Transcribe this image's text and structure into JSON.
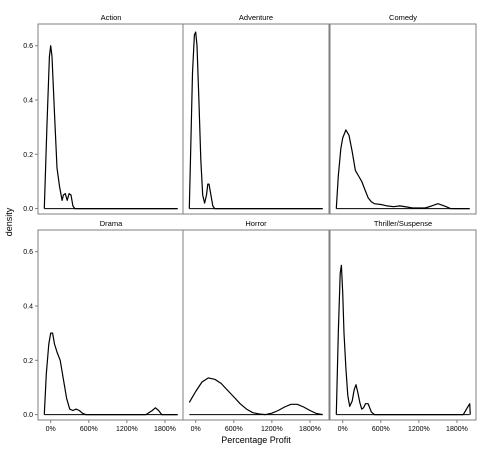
{
  "chart_data": {
    "type": "area",
    "facet_layout": "2 rows x 3 columns, shared axes",
    "xlabel": "Percentage Profit",
    "ylabel": "density",
    "xlim": [
      -200,
      2100
    ],
    "ylim": [
      -0.02,
      0.68
    ],
    "x_ticks": [
      0,
      600,
      1200,
      1800
    ],
    "x_tick_labels": [
      "0%",
      "600%",
      "1200%",
      "1800%"
    ],
    "y_ticks": [
      0.0,
      0.2,
      0.4,
      0.6
    ],
    "y_tick_labels": [
      "0.0",
      "0.2",
      "0.4",
      "0.6"
    ],
    "grid": false,
    "colors": {
      "line": "#000000",
      "panel_border": "#7f7f7f",
      "background": "#ffffff"
    },
    "facets": [
      {
        "name": "Action",
        "x": [
          -100,
          -60,
          -20,
          0,
          20,
          60,
          100,
          140,
          180,
          200,
          230,
          260,
          290,
          320,
          350,
          380,
          420,
          2000
        ],
        "value": [
          0.0,
          0.3,
          0.56,
          0.6,
          0.56,
          0.35,
          0.15,
          0.08,
          0.03,
          0.05,
          0.055,
          0.03,
          0.055,
          0.05,
          0.01,
          0.0,
          0.0,
          0.0
        ]
      },
      {
        "name": "Adventure",
        "x": [
          -100,
          -80,
          -50,
          -20,
          0,
          20,
          50,
          80,
          110,
          140,
          170,
          190,
          210,
          240,
          270,
          300,
          330,
          2000
        ],
        "value": [
          0.0,
          0.2,
          0.5,
          0.64,
          0.65,
          0.6,
          0.4,
          0.18,
          0.05,
          0.02,
          0.05,
          0.09,
          0.09,
          0.05,
          0.01,
          0.0,
          0.0,
          0.0
        ]
      },
      {
        "name": "Comedy",
        "x": [
          -100,
          -70,
          -30,
          0,
          50,
          100,
          150,
          200,
          250,
          300,
          350,
          400,
          450,
          500,
          600,
          700,
          800,
          900,
          1000,
          1100,
          1300,
          1400,
          1500,
          1600,
          1700,
          2000
        ],
        "value": [
          0.0,
          0.12,
          0.22,
          0.26,
          0.29,
          0.27,
          0.21,
          0.14,
          0.12,
          0.1,
          0.07,
          0.04,
          0.025,
          0.018,
          0.015,
          0.01,
          0.007,
          0.01,
          0.006,
          0.002,
          0.002,
          0.01,
          0.018,
          0.01,
          0.0,
          0.0
        ]
      },
      {
        "name": "Drama",
        "x": [
          -100,
          -70,
          -30,
          0,
          30,
          60,
          100,
          150,
          200,
          250,
          300,
          350,
          400,
          450,
          500,
          550,
          600,
          700,
          1500,
          1600,
          1650,
          1700,
          1750,
          2000
        ],
        "value": [
          0.0,
          0.15,
          0.26,
          0.3,
          0.3,
          0.26,
          0.23,
          0.2,
          0.13,
          0.06,
          0.02,
          0.015,
          0.02,
          0.015,
          0.005,
          0.0,
          0.0,
          0.0,
          0.0,
          0.015,
          0.025,
          0.015,
          0.0,
          0.0
        ]
      },
      {
        "name": "Horror",
        "x": [
          -100,
          -50,
          0,
          100,
          200,
          300,
          400,
          500,
          600,
          700,
          800,
          900,
          1000,
          1100,
          1200,
          1300,
          1400,
          1500,
          1600,
          1700,
          1800,
          1900,
          2000
        ],
        "value": [
          0.045,
          0.065,
          0.085,
          0.12,
          0.135,
          0.13,
          0.115,
          0.09,
          0.065,
          0.04,
          0.02,
          0.007,
          0.002,
          0.0,
          0.005,
          0.015,
          0.028,
          0.038,
          0.038,
          0.028,
          0.015,
          0.004,
          0.0
        ]
      },
      {
        "name": "Thriller/Suspense",
        "x": [
          -100,
          -70,
          -40,
          -20,
          0,
          20,
          50,
          80,
          110,
          150,
          180,
          210,
          240,
          270,
          300,
          330,
          360,
          400,
          450,
          500,
          1900,
          1950,
          2000,
          2010
        ],
        "value": [
          0.0,
          0.3,
          0.52,
          0.55,
          0.45,
          0.3,
          0.17,
          0.07,
          0.03,
          0.05,
          0.09,
          0.11,
          0.08,
          0.045,
          0.02,
          0.025,
          0.04,
          0.04,
          0.01,
          0.0,
          0.0,
          0.02,
          0.04,
          0.0
        ]
      }
    ]
  }
}
